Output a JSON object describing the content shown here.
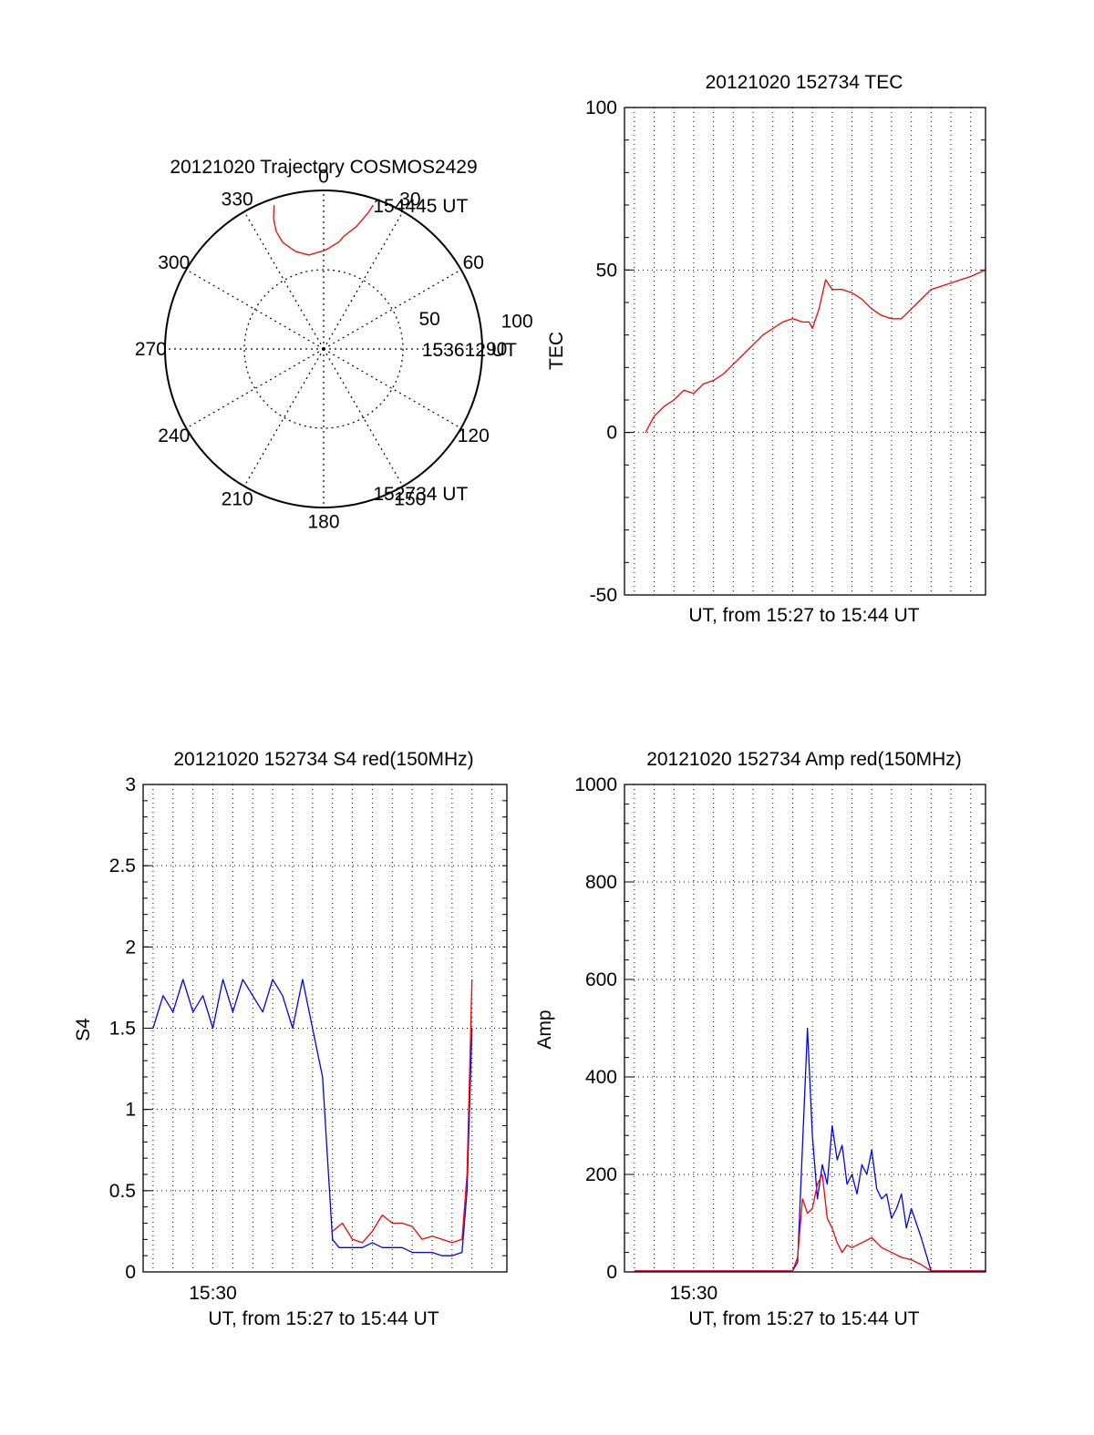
{
  "chart_data": [
    {
      "type": "polar",
      "title": "20121020 Trajectory COSMOS2429",
      "angle_labels": [
        "0",
        "30",
        "60",
        "90",
        "120",
        "150",
        "180",
        "210",
        "240",
        "270",
        "300",
        "330"
      ],
      "radial_labels": [
        "50",
        "100"
      ],
      "r_max": 100,
      "grid": true,
      "series": [
        {
          "color": "#ff0000",
          "points": [
            [
              19,
              96
            ],
            [
              18,
              90
            ],
            [
              15,
              80
            ],
            [
              10,
              72
            ],
            [
              8,
              68
            ],
            [
              2,
              63
            ],
            [
              0,
              62
            ],
            [
              -9,
              60
            ],
            [
              -16,
              64
            ],
            [
              -21,
              72
            ],
            [
              -22,
              80
            ],
            [
              -21,
              88
            ],
            [
              -19,
              96
            ]
          ]
        }
      ],
      "annotations": [
        {
          "text": "154445 UT",
          "azimuth": 19,
          "r": 96
        },
        {
          "text": "153612 UT",
          "azimuth": 90,
          "r": 62
        },
        {
          "text": "152734 UT",
          "azimuth": 161,
          "r": 96
        }
      ]
    },
    {
      "type": "line",
      "title": "20121020 152734 TEC",
      "xlabel": "UT, from 15:27 to 15:44 UT",
      "ylabel": "TEC",
      "xlim": [
        "15:26:30",
        "15:44:45"
      ],
      "ylim": [
        -50,
        100
      ],
      "yticks": [
        "-50",
        "0",
        "50",
        "100"
      ],
      "grid": true,
      "series": [
        {
          "color": "#ff0000",
          "x": [
            "15:27:34",
            "15:28:00",
            "15:28:30",
            "15:29:00",
            "15:29:30",
            "15:30:00",
            "15:30:30",
            "15:31:00",
            "15:31:30",
            "15:32:00",
            "15:32:30",
            "15:33:00",
            "15:33:30",
            "15:34:00",
            "15:34:30",
            "15:35:00",
            "15:35:30",
            "15:35:50",
            "15:36:00",
            "15:36:20",
            "15:36:40",
            "15:37:00",
            "15:37:30",
            "15:38:00",
            "15:38:30",
            "15:39:00",
            "15:39:30",
            "15:40:00",
            "15:40:30",
            "15:41:00",
            "15:41:30",
            "15:42:00",
            "15:42:30",
            "15:43:00",
            "15:43:30",
            "15:44:00",
            "15:44:45"
          ],
          "y": [
            0,
            5,
            8,
            10,
            13,
            12,
            15,
            16,
            18,
            21,
            24,
            27,
            30,
            32,
            34,
            35,
            34,
            34,
            32,
            38,
            47,
            44,
            44,
            43,
            41,
            38,
            36,
            35,
            35,
            38,
            41,
            44,
            45,
            46,
            47,
            48,
            50
          ]
        }
      ]
    },
    {
      "type": "line",
      "title": "20121020 152734 S4 red(150MHz)",
      "xlabel": "UT, from 15:27 to 15:44 UT",
      "ylabel": "S4",
      "xticks": [
        "15:30"
      ],
      "xlim": [
        "15:26:30",
        "15:44:45"
      ],
      "ylim": [
        0,
        3
      ],
      "yticks": [
        "0",
        "0.5",
        "1",
        "1.5",
        "2",
        "2.5",
        "3"
      ],
      "grid": true,
      "series": [
        {
          "color": "#0000ff",
          "x": [
            "15:27:00",
            "15:27:30",
            "15:28:00",
            "15:28:30",
            "15:29:00",
            "15:29:30",
            "15:30:00",
            "15:30:30",
            "15:31:00",
            "15:31:30",
            "15:32:00",
            "15:32:30",
            "15:33:00",
            "15:33:30",
            "15:34:00",
            "15:34:30",
            "15:35:00",
            "15:35:30",
            "15:36:00",
            "15:36:20",
            "15:36:40",
            "15:37:00",
            "15:37:30",
            "15:38:00",
            "15:38:30",
            "15:39:00",
            "15:39:30",
            "15:40:00",
            "15:40:30",
            "15:41:00",
            "15:41:30",
            "15:42:00",
            "15:42:30",
            "15:42:45",
            "15:43:00"
          ],
          "y": [
            1.5,
            1.7,
            1.6,
            1.8,
            1.6,
            1.7,
            1.5,
            1.8,
            1.6,
            1.8,
            1.7,
            1.6,
            1.8,
            1.7,
            1.5,
            1.8,
            1.5,
            1.2,
            0.2,
            0.15,
            0.15,
            0.15,
            0.15,
            0.18,
            0.15,
            0.15,
            0.15,
            0.12,
            0.12,
            0.12,
            0.1,
            0.1,
            0.12,
            0.5,
            1.5
          ]
        },
        {
          "color": "#ff0000",
          "x": [
            "15:36:00",
            "15:36:30",
            "15:37:00",
            "15:37:30",
            "15:38:00",
            "15:38:30",
            "15:39:00",
            "15:39:30",
            "15:40:00",
            "15:40:30",
            "15:41:00",
            "15:41:30",
            "15:42:00",
            "15:42:30",
            "15:42:45",
            "15:43:00"
          ],
          "y": [
            0.25,
            0.3,
            0.2,
            0.18,
            0.25,
            0.35,
            0.3,
            0.3,
            0.28,
            0.2,
            0.22,
            0.2,
            0.18,
            0.2,
            0.6,
            1.8
          ]
        }
      ]
    },
    {
      "type": "line",
      "title": "20121020 152734 Amp red(150MHz)",
      "xlabel": "UT, from 15:27 to 15:44 UT",
      "ylabel": "Amp",
      "xticks": [
        "15:30"
      ],
      "xlim": [
        "15:26:30",
        "15:44:45"
      ],
      "ylim": [
        0,
        1000
      ],
      "yticks": [
        "0",
        "200",
        "400",
        "600",
        "800",
        "1000"
      ],
      "grid": true,
      "series": [
        {
          "color": "#0000ff",
          "x": [
            "15:27:00",
            "15:35:00",
            "15:35:15",
            "15:35:30",
            "15:35:45",
            "15:36:00",
            "15:36:15",
            "15:36:30",
            "15:36:45",
            "15:37:00",
            "15:37:15",
            "15:37:30",
            "15:37:45",
            "15:38:00",
            "15:38:15",
            "15:38:30",
            "15:38:45",
            "15:39:00",
            "15:39:15",
            "15:39:30",
            "15:39:45",
            "15:40:00",
            "15:40:15",
            "15:40:30",
            "15:40:45",
            "15:41:00",
            "15:41:15",
            "15:41:30",
            "15:42:00",
            "15:44:45"
          ],
          "y": [
            2,
            2,
            20,
            260,
            500,
            280,
            150,
            220,
            180,
            300,
            230,
            260,
            180,
            200,
            160,
            220,
            200,
            250,
            170,
            150,
            160,
            110,
            130,
            160,
            90,
            130,
            100,
            70,
            2,
            2
          ]
        },
        {
          "color": "#ff0000",
          "x": [
            "15:27:00",
            "15:35:00",
            "15:35:15",
            "15:35:30",
            "15:35:45",
            "15:36:00",
            "15:36:15",
            "15:36:30",
            "15:36:45",
            "15:37:00",
            "15:37:15",
            "15:37:30",
            "15:37:45",
            "15:38:00",
            "15:38:30",
            "15:39:00",
            "15:39:30",
            "15:40:00",
            "15:40:30",
            "15:41:00",
            "15:41:30",
            "15:42:00",
            "15:44:45"
          ],
          "y": [
            2,
            2,
            30,
            150,
            120,
            130,
            180,
            200,
            110,
            90,
            60,
            40,
            55,
            50,
            60,
            70,
            50,
            40,
            30,
            25,
            15,
            2,
            2
          ]
        }
      ]
    }
  ]
}
